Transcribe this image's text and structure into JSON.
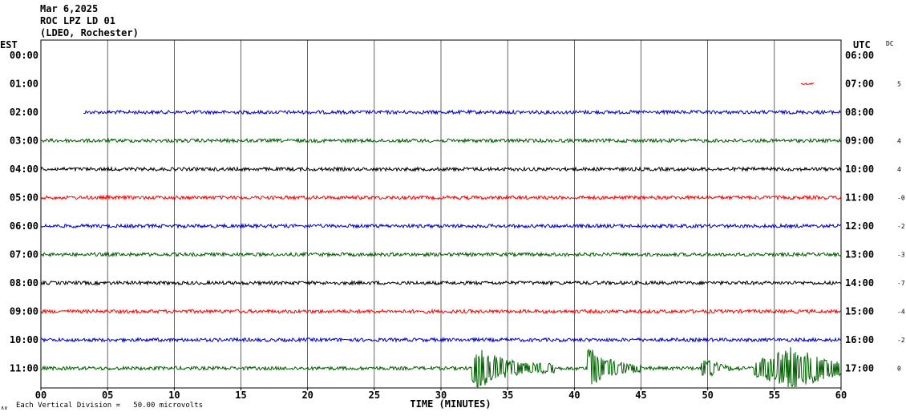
{
  "header": {
    "date": "Mar 6,2025",
    "station": "ROC LPZ LD 01",
    "location": "(LDEO, Rochester)"
  },
  "left_axis_label": "EST",
  "right_axis_label": "UTC",
  "dc_label": "DC",
  "footer": {
    "symbol": "∧∨",
    "scale_note": "Each Vertical Division =   50.00 microvolts"
  },
  "chart_data": {
    "type": "line",
    "title": "",
    "xlabel": "TIME (MINUTES)",
    "ylabel": "",
    "xlim": [
      0,
      60
    ],
    "x_ticks": [
      "00",
      "05",
      "10",
      "15",
      "20",
      "25",
      "30",
      "35",
      "40",
      "45",
      "50",
      "55",
      "60"
    ],
    "grid": true,
    "rows": [
      {
        "est": "00:00",
        "utc": "06:00",
        "dc": "",
        "color": "#000000",
        "start": null,
        "end": null
      },
      {
        "est": "01:00",
        "utc": "07:00",
        "dc": "5",
        "color": "#ff0000",
        "start": 57.0,
        "end": 58.0
      },
      {
        "est": "02:00",
        "utc": "08:00",
        "dc": "",
        "color": "#0000c0",
        "start": 3.2,
        "end": 60
      },
      {
        "est": "03:00",
        "utc": "09:00",
        "dc": "4",
        "color": "#006000",
        "start": 0,
        "end": 60
      },
      {
        "est": "04:00",
        "utc": "10:00",
        "dc": "4",
        "color": "#000000",
        "start": 0,
        "end": 60
      },
      {
        "est": "05:00",
        "utc": "11:00",
        "dc": "-0",
        "color": "#ff0000",
        "start": 0,
        "end": 60
      },
      {
        "est": "06:00",
        "utc": "12:00",
        "dc": "-2",
        "color": "#0000c0",
        "start": 0,
        "end": 60
      },
      {
        "est": "07:00",
        "utc": "13:00",
        "dc": "-3",
        "color": "#006000",
        "start": 0,
        "end": 60
      },
      {
        "est": "08:00",
        "utc": "14:00",
        "dc": "-7",
        "color": "#000000",
        "start": 0,
        "end": 60
      },
      {
        "est": "09:00",
        "utc": "15:00",
        "dc": "-4",
        "color": "#ff0000",
        "start": 0,
        "end": 60
      },
      {
        "est": "10:00",
        "utc": "16:00",
        "dc": "-2",
        "color": "#0000c0",
        "start": 0,
        "end": 60
      },
      {
        "est": "11:00",
        "utc": "17:00",
        "dc": "0",
        "color": "#006000",
        "start": 0,
        "end": 60
      }
    ],
    "events": [
      {
        "row": "11:00",
        "start": 32.3,
        "end": 38.5,
        "peak": 32.8,
        "amplitude": "large"
      },
      {
        "row": "11:00",
        "start": 41.0,
        "end": 45.0,
        "peak": 41.2,
        "amplitude": "large"
      },
      {
        "row": "11:00",
        "start": 49.5,
        "end": 52.5,
        "peak": 50.0,
        "amplitude": "medium"
      },
      {
        "row": "11:00",
        "start": 53.5,
        "end": 60.0,
        "peak": 56.5,
        "amplitude": "very large"
      }
    ]
  }
}
